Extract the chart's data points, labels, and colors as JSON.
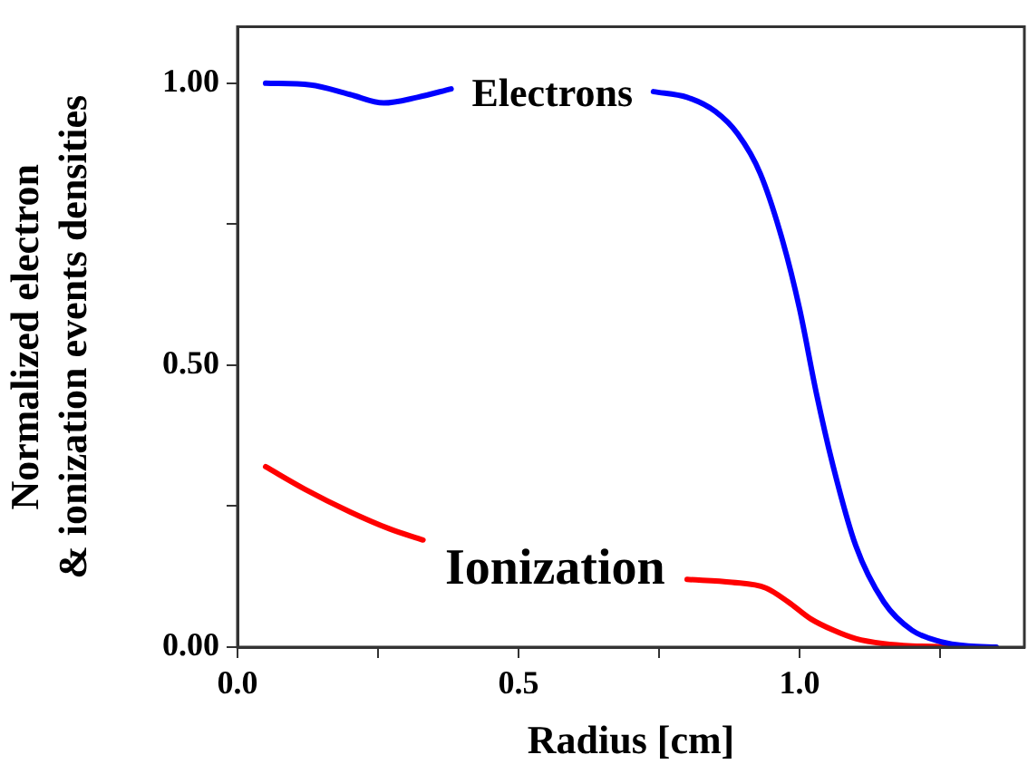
{
  "chart_data": {
    "type": "line",
    "xlabel": "Radius [cm]",
    "ylabel": "Normalized electron\n& ionization events densities",
    "xlim": [
      0,
      1.4
    ],
    "ylim": [
      0,
      1.1
    ],
    "xticks": [
      {
        "value": 0,
        "label": "0.0"
      },
      {
        "value": 0.25,
        "label": null
      },
      {
        "value": 0.5,
        "label": "0.5"
      },
      {
        "value": 0.75,
        "label": null
      },
      {
        "value": 1,
        "label": "1.0"
      },
      {
        "value": 1.25,
        "label": null
      }
    ],
    "yticks": [
      {
        "value": 0,
        "label": "0.00"
      },
      {
        "value": 0.25,
        "label": null
      },
      {
        "value": 0.5,
        "label": "0.50"
      },
      {
        "value": 0.75,
        "label": null
      },
      {
        "value": 1,
        "label": "1.00"
      }
    ],
    "grid": false,
    "legend": false,
    "marker": "none",
    "line_style": "solid",
    "series": [
      {
        "name": "Electrons",
        "color": "#0000ff",
        "x": [
          0.05,
          0.13,
          0.2,
          0.26,
          0.32,
          0.38,
          0.56,
          0.74,
          0.8,
          0.85,
          0.89,
          0.93,
          0.97,
          1.0,
          1.03,
          1.06,
          1.1,
          1.15,
          1.2,
          1.25,
          1.3,
          1.35
        ],
        "values": [
          1.0,
          0.997,
          0.98,
          0.965,
          0.975,
          0.99,
          null,
          0.985,
          0.975,
          0.95,
          0.91,
          0.84,
          0.72,
          0.6,
          0.45,
          0.32,
          0.18,
          0.08,
          0.03,
          0.01,
          0.002,
          0
        ]
      },
      {
        "name": "Ionization",
        "color": "#ff0000",
        "x": [
          0.05,
          0.12,
          0.2,
          0.27,
          0.33,
          0.56,
          0.8,
          0.88,
          0.94,
          0.98,
          1.02,
          1.06,
          1.1,
          1.15,
          1.2,
          1.25,
          1.3
        ],
        "values": [
          0.32,
          0.28,
          0.24,
          0.21,
          0.19,
          null,
          0.12,
          0.115,
          0.105,
          0.08,
          0.05,
          0.03,
          0.015,
          0.006,
          0.002,
          0.001,
          0
        ]
      }
    ]
  }
}
